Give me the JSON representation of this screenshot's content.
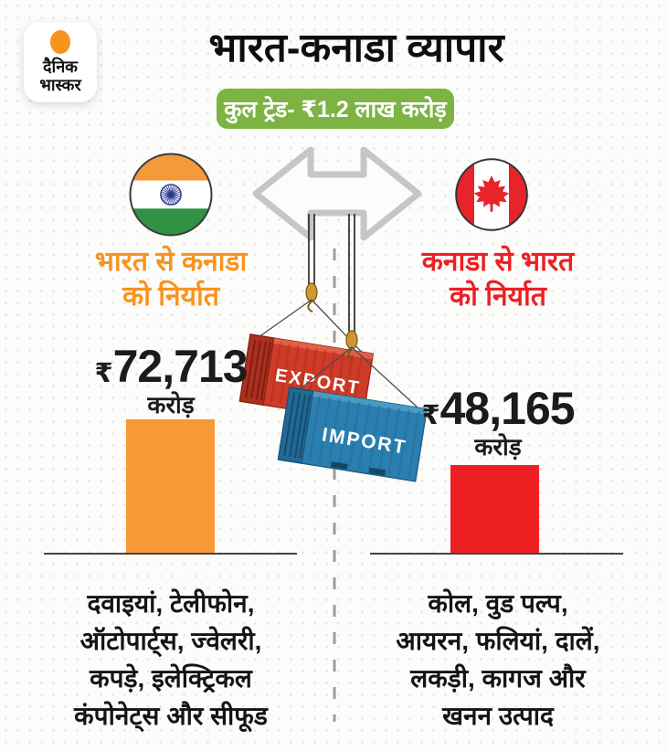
{
  "logo": {
    "line1": "दैनिक",
    "line2": "भास्कर"
  },
  "header": {
    "title": "भारत-कनाडा व्यापार",
    "badge": "कुल ट्रेड- ₹1.2 लाख करोड़"
  },
  "containers": {
    "export": "EXPORT",
    "import": "IMPORT"
  },
  "left": {
    "label_line1": "भारत से कनाडा",
    "label_line2": "को निर्यात",
    "currency": "₹",
    "value": "72,713",
    "unit": "करोड़",
    "items": [
      "दवाइयां, टेलीफोन,",
      "ऑटोपार्ट्स, ज्वेलरी,",
      "कपड़े, इलेक्ट्रिकल",
      "कंपोनेट्स और सीफूड"
    ]
  },
  "right": {
    "label_line1": "कनाडा से भारत",
    "label_line2": "को निर्यात",
    "currency": "₹",
    "value": "48,165",
    "unit": "करोड़",
    "items": [
      "कोल, वुड पल्प,",
      "आयरन, फलियां, दालें,",
      "लकड़ी, कागज और",
      "खनन उत्पाद"
    ]
  },
  "colors": {
    "india_accent": "#F7941E",
    "canada_accent": "#EC2024",
    "badge_green": "#7CB342",
    "bar_orange": "#F89938",
    "bar_red": "#EE2024"
  },
  "chart_data": {
    "type": "bar",
    "title": "भारत-कनाडा व्यापार",
    "subtitle": "कुल ट्रेड- ₹1.2 लाख करोड़",
    "categories": [
      "भारत से कनाडा को निर्यात",
      "कनाडा से भारत को निर्यात"
    ],
    "values": [
      72713,
      48165
    ],
    "unit": "₹ करोड़",
    "bar_colors": [
      "#F89938",
      "#EE2024"
    ],
    "legend_position": "none",
    "grid": false,
    "annotations": [
      "दवाइयां, टेलीफोन, ऑटोपार्ट्स, ज्वेलरी, कपड़े, इलेक्ट्रिकल कंपोनेट्स और सीफूड",
      "कोल, वुड पल्प, आयरन, फलियां, दालें, लकड़ी, कागज और खनन उत्पाद"
    ]
  }
}
